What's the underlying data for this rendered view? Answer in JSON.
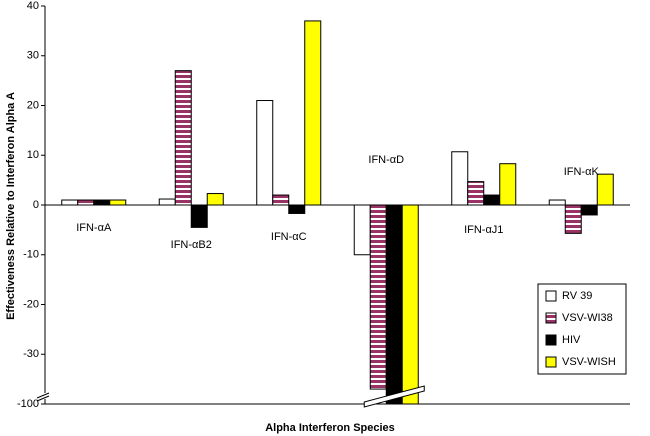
{
  "chart_data": {
    "type": "bar",
    "categories": [
      "IFN-αA",
      "IFN-αB2",
      "IFN-αC",
      "IFN-αD",
      "IFN-αJ1",
      "IFN-αK"
    ],
    "series": [
      {
        "name": "RV 39",
        "color": "#ffffff",
        "values": [
          1,
          1.2,
          21,
          -10,
          10.7,
          1
        ]
      },
      {
        "name": "VSV-WI38",
        "color": "#993366",
        "values": [
          1,
          27,
          2,
          -37,
          4.7,
          -5.7
        ]
      },
      {
        "name": "HIV",
        "color": "#000000",
        "values": [
          1,
          -4.5,
          -1.7,
          -100,
          2,
          -2
        ]
      },
      {
        "name": "VSV-WISH",
        "color": "#ffff00",
        "values": [
          1,
          2.3,
          37,
          -100,
          8.3,
          6.2
        ]
      }
    ],
    "x_label": "Alpha Interferon Species",
    "y_label": "Effectiveness Relative to Interferon Alpha A",
    "ylim": [
      -100,
      40
    ],
    "yticks": [
      40,
      30,
      20,
      10,
      0,
      -10,
      -20,
      -30,
      -100
    ],
    "axis_break": true,
    "legend": "lower right"
  }
}
